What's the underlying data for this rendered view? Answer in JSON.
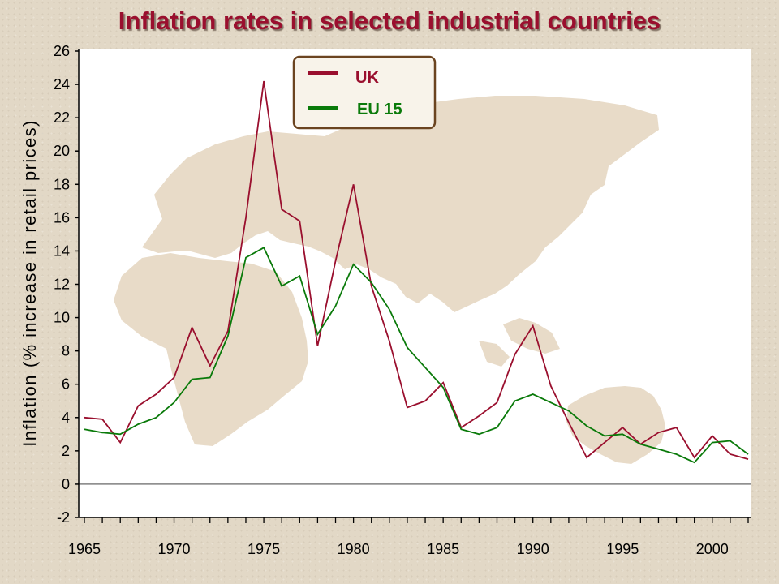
{
  "chart_data": {
    "type": "line",
    "title": "Inflation rates in selected industrial countries",
    "ylabel_main": "Inflation",
    "ylabel_paren": "(% increase in retail prices)",
    "ylim": [
      -2,
      26
    ],
    "yticks": [
      -2,
      0,
      2,
      4,
      6,
      8,
      10,
      12,
      14,
      16,
      18,
      20,
      22,
      24,
      26
    ],
    "xlim": [
      1965,
      2002
    ],
    "xticks": [
      1965,
      1970,
      1975,
      1980,
      1985,
      1990,
      1995,
      2000
    ],
    "legend_position": "top-center",
    "grid": false,
    "x": [
      1965,
      1966,
      1967,
      1968,
      1969,
      1970,
      1971,
      1972,
      1973,
      1974,
      1975,
      1976,
      1977,
      1978,
      1979,
      1980,
      1981,
      1982,
      1983,
      1984,
      1985,
      1986,
      1987,
      1988,
      1989,
      1990,
      1991,
      1992,
      1993,
      1994,
      1995,
      1996,
      1997,
      1998,
      1999,
      2000,
      2001,
      2002
    ],
    "series": [
      {
        "name": "UK",
        "color": "#9a0f2e",
        "values": [
          4.0,
          3.9,
          2.5,
          4.7,
          5.4,
          6.4,
          9.4,
          7.1,
          9.2,
          16.0,
          24.2,
          16.5,
          15.8,
          8.3,
          13.4,
          18.0,
          11.9,
          8.6,
          4.6,
          5.0,
          6.1,
          3.4,
          4.1,
          4.9,
          7.8,
          9.5,
          5.9,
          3.7,
          1.6,
          2.5,
          3.4,
          2.4,
          3.1,
          3.4,
          1.6,
          2.9,
          1.8,
          1.5
        ]
      },
      {
        "name": "EU 15",
        "color": "#0a7a0a",
        "values": [
          3.3,
          3.1,
          3.0,
          3.6,
          4.0,
          4.9,
          6.3,
          6.4,
          8.9,
          13.6,
          14.2,
          11.9,
          12.5,
          9.0,
          10.7,
          13.2,
          12.1,
          10.5,
          8.2,
          7.0,
          5.8,
          3.3,
          3.0,
          3.4,
          5.0,
          5.4,
          4.9,
          4.4,
          3.5,
          2.9,
          3.0,
          2.4,
          2.1,
          1.8,
          1.3,
          2.5,
          2.6,
          1.8
        ]
      }
    ]
  },
  "colors": {
    "plot_area": "#ffffff",
    "map_land": "#e8dbc8",
    "legend_border": "#6b4420",
    "legend_fill": "#f8f3ea",
    "title": "#9a0f2e"
  }
}
